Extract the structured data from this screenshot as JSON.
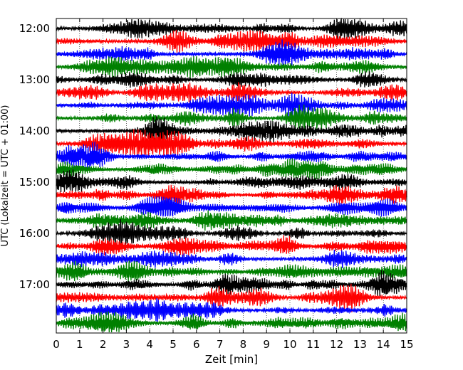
{
  "chart_data": {
    "type": "line",
    "title": "",
    "xlabel": "Zeit  [min]",
    "ylabel": "UTC (Lokalzeit = UTC + 01:00)",
    "xlim": [
      0,
      15
    ],
    "x_ticks": [
      "0",
      "1",
      "2",
      "3",
      "4",
      "5",
      "6",
      "7",
      "8",
      "9",
      "10",
      "11",
      "12",
      "13",
      "14",
      "15"
    ],
    "y_tick_labels": [
      "12:00",
      "13:00",
      "14:00",
      "15:00",
      "16:00",
      "17:00"
    ],
    "trace_interval_min": 15,
    "start_time": "12:00",
    "trace_count": 24,
    "trace_colors": [
      "#000000",
      "#ff0000",
      "#0000ff",
      "#008000"
    ],
    "grid": "vertical dotted lines at each minute",
    "series": [
      {
        "start": "12:00",
        "color": "#000000"
      },
      {
        "start": "12:15",
        "color": "#ff0000"
      },
      {
        "start": "12:30",
        "color": "#0000ff"
      },
      {
        "start": "12:45",
        "color": "#008000"
      },
      {
        "start": "13:00",
        "color": "#000000"
      },
      {
        "start": "13:15",
        "color": "#ff0000"
      },
      {
        "start": "13:30",
        "color": "#0000ff"
      },
      {
        "start": "13:45",
        "color": "#008000"
      },
      {
        "start": "14:00",
        "color": "#000000"
      },
      {
        "start": "14:15",
        "color": "#ff0000"
      },
      {
        "start": "14:30",
        "color": "#0000ff"
      },
      {
        "start": "14:45",
        "color": "#008000"
      },
      {
        "start": "15:00",
        "color": "#000000"
      },
      {
        "start": "15:15",
        "color": "#ff0000"
      },
      {
        "start": "15:30",
        "color": "#0000ff"
      },
      {
        "start": "15:45",
        "color": "#008000"
      },
      {
        "start": "16:00",
        "color": "#000000"
      },
      {
        "start": "16:15",
        "color": "#ff0000"
      },
      {
        "start": "16:30",
        "color": "#0000ff"
      },
      {
        "start": "16:45",
        "color": "#008000"
      },
      {
        "start": "17:00",
        "color": "#000000"
      },
      {
        "start": "17:15",
        "color": "#ff0000"
      },
      {
        "start": "17:30",
        "color": "#0000ff"
      },
      {
        "start": "17:45",
        "color": "#008000"
      }
    ]
  }
}
